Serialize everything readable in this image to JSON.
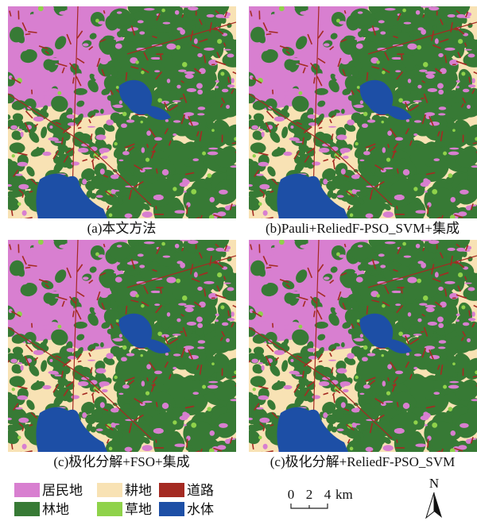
{
  "panels": [
    {
      "caption": "(a)本文方法"
    },
    {
      "caption": "(b)Pauli+ReliedF-PSO_SVM+集成"
    },
    {
      "caption": "(c)极化分解+FSO+集成"
    },
    {
      "caption": "(c)极化分解+ReliedF-PSO_SVM"
    }
  ],
  "legend": [
    {
      "label": "居民地"
    },
    {
      "label": "耕地"
    },
    {
      "label": "道路"
    },
    {
      "label": "林地"
    },
    {
      "label": "草地"
    },
    {
      "label": "水体"
    }
  ],
  "scale": {
    "ticks": [
      "0",
      "2",
      "4"
    ],
    "unit": "km"
  },
  "north": "N"
}
